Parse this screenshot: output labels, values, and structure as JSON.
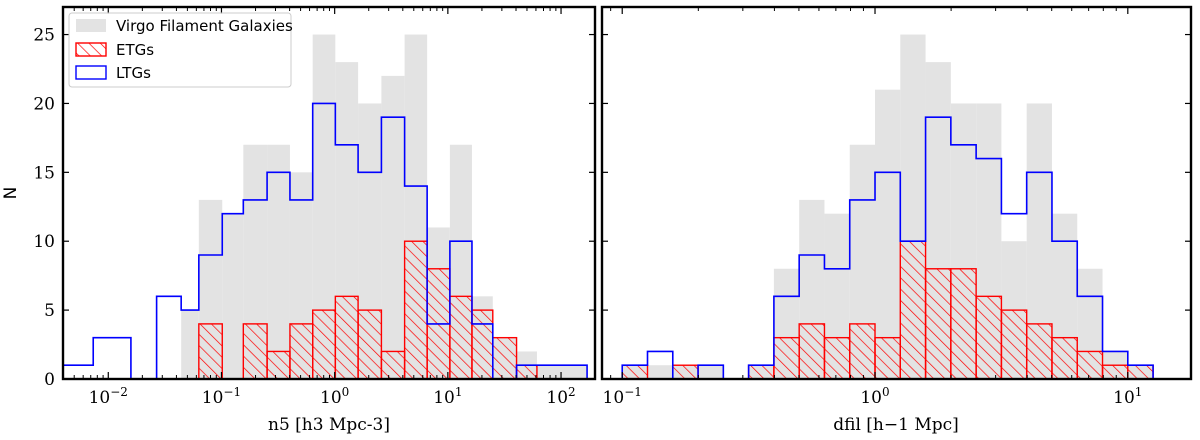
{
  "chart_data": [
    {
      "type": "histogram",
      "xscale": "log",
      "xlim_log10": [
        -2.4,
        2.3
      ],
      "ylim": [
        0,
        27
      ],
      "xlabel": "n5 [h3 Mpc-3]",
      "ylabel": "N",
      "yticks": [
        0,
        5,
        10,
        15,
        20,
        25
      ],
      "xticks": [
        {
          "exp": -2,
          "label": "10−2"
        },
        {
          "exp": -1,
          "label": "10−1"
        },
        {
          "exp": 0,
          "label": "100"
        },
        {
          "exp": 1,
          "label": "101"
        },
        {
          "exp": 2,
          "label": "102"
        }
      ],
      "bin_edges_log10": [
        -2.4,
        -2.133,
        -1.8,
        -1.573,
        -1.356,
        -1.2,
        -0.993,
        -0.807,
        -0.597,
        -0.395,
        -0.194,
        0.006,
        0.207,
        0.413,
        0.618,
        0.817,
        1.018,
        1.213,
        1.397,
        1.607,
        1.787,
        2.23
      ],
      "series": [
        {
          "name": "Virgo Filament Galaxies",
          "style": "filled",
          "color": "#e3e3e3",
          "values": [
            0,
            0,
            0,
            0,
            5,
            13,
            12,
            17,
            17,
            15,
            25,
            23,
            20,
            22,
            25,
            11,
            17,
            6,
            3,
            2,
            1
          ]
        },
        {
          "name": "ETGs",
          "style": "hatched",
          "color": "#ff0000",
          "values": [
            0,
            0,
            0,
            0,
            0,
            4,
            0,
            4,
            2,
            4,
            5,
            6,
            5,
            2,
            10,
            8,
            6,
            5,
            3,
            1,
            0
          ]
        },
        {
          "name": "LTGs",
          "style": "step",
          "color": "#0000ff",
          "values": [
            1,
            3,
            0,
            6,
            5,
            9,
            12,
            13,
            15,
            13,
            20,
            17,
            15,
            19,
            14,
            4,
            10,
            4,
            0,
            1,
            1
          ]
        }
      ]
    },
    {
      "type": "histogram",
      "xscale": "log",
      "xlim_log10": [
        -1.08,
        1.25
      ],
      "ylim": [
        0,
        27
      ],
      "xlabel": "dfil [h−1 Mpc]",
      "ylabel": "",
      "yticks": [
        0,
        5,
        10,
        15,
        20,
        25
      ],
      "xticks": [
        {
          "exp": -1,
          "label": "10−1"
        },
        {
          "exp": 0,
          "label": "100"
        },
        {
          "exp": 1,
          "label": "101"
        }
      ],
      "bin_edges_log10": [
        -1.0,
        -0.9,
        -0.8,
        -0.7,
        -0.6,
        -0.5,
        -0.4,
        -0.3,
        -0.2,
        -0.1,
        0.0,
        0.1,
        0.2,
        0.3,
        0.4,
        0.5,
        0.6,
        0.7,
        0.8,
        0.9,
        1.0,
        1.1
      ],
      "series": [
        {
          "name": "Virgo Filament Galaxies",
          "style": "filled",
          "color": "#e3e3e3",
          "values": [
            1,
            1,
            1,
            1,
            0,
            1,
            8,
            13,
            12,
            17,
            21,
            25,
            23,
            20,
            20,
            10,
            20,
            12,
            8,
            2,
            1
          ]
        },
        {
          "name": "ETGs",
          "style": "hatched",
          "color": "#ff0000",
          "values": [
            1,
            0,
            1,
            0,
            0,
            1,
            3,
            4,
            3,
            4,
            3,
            10,
            8,
            8,
            6,
            5,
            4,
            3,
            2,
            1,
            1
          ]
        },
        {
          "name": "LTGs",
          "style": "step",
          "color": "#0000ff",
          "values": [
            1,
            2,
            0,
            1,
            0,
            1,
            6,
            9,
            8,
            13,
            15,
            10,
            19,
            17,
            16,
            12,
            15,
            10,
            6,
            2,
            1
          ]
        }
      ]
    }
  ],
  "legend": {
    "position": "upper-left",
    "items": [
      {
        "label": "Virgo Filament Galaxies",
        "style": "filled",
        "color": "#e3e3e3"
      },
      {
        "label": "ETGs",
        "style": "hatched",
        "color": "#ff0000"
      },
      {
        "label": "LTGs",
        "style": "step",
        "color": "#0000ff"
      }
    ]
  }
}
